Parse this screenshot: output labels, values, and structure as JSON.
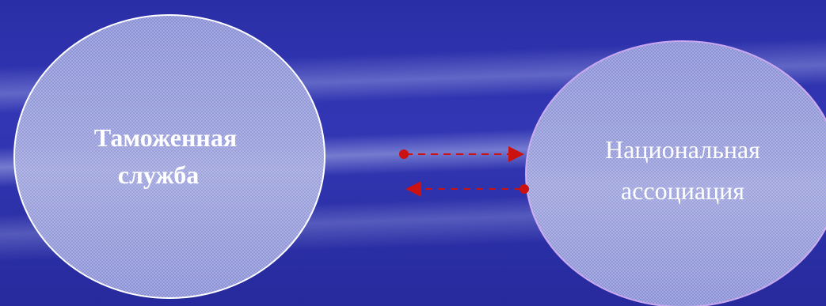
{
  "nodes": {
    "customs": {
      "line1": "Таможенная",
      "line2": "служба"
    },
    "association": {
      "line1": "Национальная",
      "line2": "ассоциация"
    }
  },
  "colors": {
    "background": "#2f33ad",
    "circle_fill": "#8f95d6",
    "customs_outline": "#ffffff",
    "association_outline": "#c9a7f0",
    "arrow": "#cc1111"
  }
}
